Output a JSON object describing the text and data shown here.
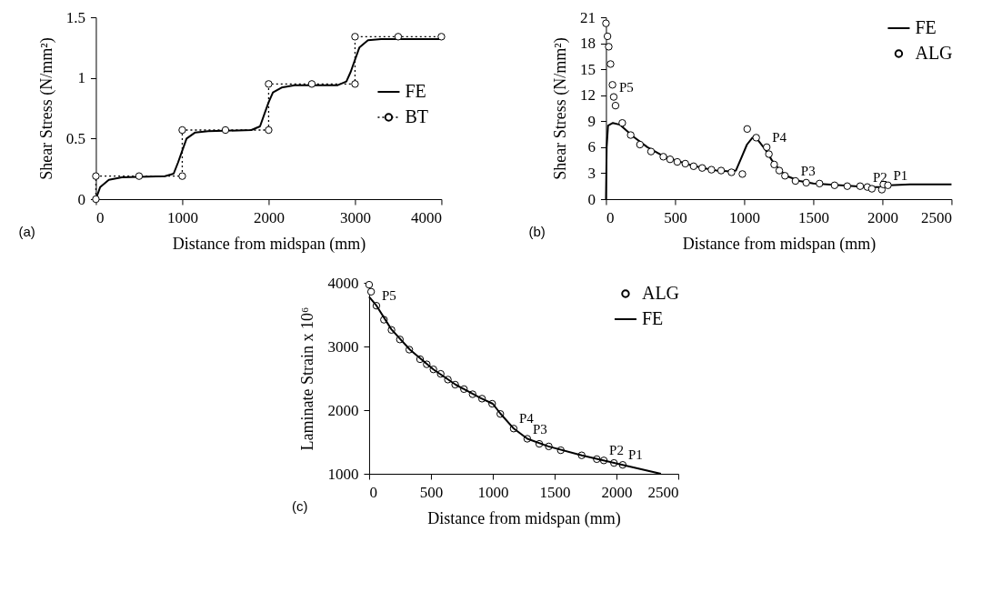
{
  "chart_data": [
    {
      "type": "line",
      "xlabel": "Distance from midspan (mm)",
      "ylabel": "Shear Stress (N/mm²)",
      "xlim": [
        0,
        4000
      ],
      "xticks": [
        0,
        1000,
        2000,
        3000,
        4000
      ],
      "ylim": [
        0,
        1.5
      ],
      "yticks": [
        0,
        0.5,
        1,
        1.5
      ],
      "legend": "right",
      "annotations": [
        "(a)"
      ],
      "series": [
        {
          "name": "FE",
          "color": "#000000",
          "line_style": "solid",
          "marker": "none",
          "x": [
            0,
            50,
            150,
            300,
            800,
            900,
            950,
            1000,
            1050,
            1150,
            1300,
            1800,
            1900,
            1950,
            2000,
            2050,
            2150,
            2300,
            2800,
            2900,
            2950,
            3000,
            3050,
            3150,
            3300,
            4000
          ],
          "values": [
            0,
            0.1,
            0.16,
            0.18,
            0.19,
            0.21,
            0.3,
            0.4,
            0.5,
            0.55,
            0.56,
            0.57,
            0.6,
            0.7,
            0.8,
            0.88,
            0.92,
            0.94,
            0.94,
            0.97,
            1.05,
            1.15,
            1.25,
            1.31,
            1.32,
            1.32
          ]
        },
        {
          "name": "BT",
          "color": "#000000",
          "line_style": "dotted",
          "marker": "circle",
          "x": [
            0,
            0,
            500,
            1000,
            1000,
            1500,
            2000,
            2000,
            2500,
            3000,
            3000,
            3500,
            4000
          ],
          "values": [
            0,
            0.19,
            0.19,
            0.19,
            0.57,
            0.57,
            0.57,
            0.95,
            0.95,
            0.95,
            1.34,
            1.34,
            1.34
          ]
        }
      ]
    },
    {
      "type": "line",
      "xlabel": "Distance from midspan (mm)",
      "ylabel": "Shear Stress (N/mm²)",
      "xlim": [
        0,
        2500
      ],
      "xticks": [
        0,
        500,
        1000,
        1500,
        2000,
        2500
      ],
      "ylim": [
        0,
        21
      ],
      "yticks": [
        0,
        3,
        6,
        9,
        12,
        15,
        18,
        21
      ],
      "legend": "top right",
      "annotations": [
        "(b)",
        {
          "text": "P5",
          "x": 56,
          "y": 11.8
        },
        {
          "text": "P4",
          "x": 1163,
          "y": 6.0
        },
        {
          "text": "P3",
          "x": 1371,
          "y": 2.1
        },
        {
          "text": "P2",
          "x": 1891,
          "y": 1.4
        },
        {
          "text": "P1",
          "x": 2040,
          "y": 1.6
        }
      ],
      "series": [
        {
          "name": "FE",
          "color": "#000000",
          "line_style": "solid",
          "marker": "none",
          "x": [
            0,
            5,
            15,
            50,
            100,
            200,
            300,
            400,
            500,
            600,
            700,
            800,
            900,
            940,
            980,
            1020,
            1060,
            1100,
            1150,
            1200,
            1260,
            1320,
            1400,
            1500,
            1700,
            1900,
            2000,
            2050,
            2200,
            2500
          ],
          "values": [
            0,
            6,
            8.5,
            8.8,
            8.6,
            7.2,
            6.0,
            5.1,
            4.5,
            4.0,
            3.6,
            3.3,
            3.2,
            3.3,
            4.8,
            6.3,
            7.1,
            6.8,
            5.8,
            4.5,
            3.3,
            2.6,
            2.1,
            1.8,
            1.6,
            1.4,
            1.4,
            1.6,
            1.7,
            1.7
          ]
        },
        {
          "name": "ALG",
          "type": "scatter",
          "color": "#000000",
          "marker": "circle",
          "x": [
            0,
            11,
            20,
            33,
            47,
            56,
            69,
            118,
            179,
            246,
            326,
            415,
            464,
            516,
            574,
            634,
            696,
            763,
            833,
            908,
            987,
            1022,
            1087,
            1163,
            1179,
            1217,
            1254,
            1295,
            1371,
            1449,
            1545,
            1654,
            1746,
            1839,
            1891,
            1924,
            1996,
            2007,
            2040
          ],
          "values": [
            20.3,
            18.8,
            17.6,
            15.6,
            13.2,
            11.8,
            10.8,
            8.8,
            7.4,
            6.3,
            5.5,
            4.9,
            4.6,
            4.3,
            4.1,
            3.8,
            3.6,
            3.4,
            3.3,
            3.1,
            2.9,
            8.1,
            7.1,
            6.0,
            5.2,
            4.0,
            3.3,
            2.7,
            2.1,
            1.9,
            1.8,
            1.6,
            1.5,
            1.5,
            1.4,
            1.2,
            1.1,
            1.7,
            1.6
          ]
        }
      ]
    },
    {
      "type": "line",
      "xlabel": "Distance from midspan (mm)",
      "ylabel": "Laminate Strain x 10⁶",
      "xlim": [
        0,
        2500
      ],
      "xticks": [
        0,
        500,
        1000,
        1500,
        2000,
        2500
      ],
      "ylim": [
        1000,
        4000
      ],
      "yticks": [
        1000,
        2000,
        3000,
        4000
      ],
      "legend": "top right",
      "annotations": [
        "(c)",
        {
          "text": "P5",
          "x": 59,
          "y": 3640
        },
        {
          "text": "P4",
          "x": 1169,
          "y": 1710
        },
        {
          "text": "P3",
          "x": 1279,
          "y": 1550
        },
        {
          "text": "P2",
          "x": 1898,
          "y": 1210
        },
        {
          "text": "P1",
          "x": 2051,
          "y": 1140
        }
      ],
      "series": [
        {
          "name": "ALG",
          "type": "scatter",
          "color": "#000000",
          "marker": "circle",
          "x": [
            0,
            16,
            59,
            120,
            181,
            249,
            325,
            412,
            466,
            520,
            579,
            637,
            696,
            767,
            837,
            913,
            995,
            1061,
            1169,
            1279,
            1376,
            1453,
            1550,
            1719,
            1841,
            1898,
            1980,
            2051
          ],
          "values": [
            3970,
            3860,
            3640,
            3420,
            3260,
            3110,
            2950,
            2800,
            2720,
            2640,
            2570,
            2480,
            2400,
            2330,
            2250,
            2180,
            2100,
            1940,
            1710,
            1550,
            1470,
            1430,
            1370,
            1290,
            1230,
            1210,
            1170,
            1140
          ]
        },
        {
          "name": "FE",
          "color": "#000000",
          "line_style": "solid",
          "marker": "none",
          "x": [
            0,
            60,
            180,
            330,
            520,
            700,
            900,
            1000,
            1060,
            1170,
            1280,
            1450,
            1720,
            2050,
            2360
          ],
          "values": [
            3780,
            3640,
            3270,
            2950,
            2640,
            2400,
            2190,
            2100,
            1950,
            1710,
            1550,
            1430,
            1290,
            1140,
            1000
          ]
        }
      ]
    }
  ]
}
